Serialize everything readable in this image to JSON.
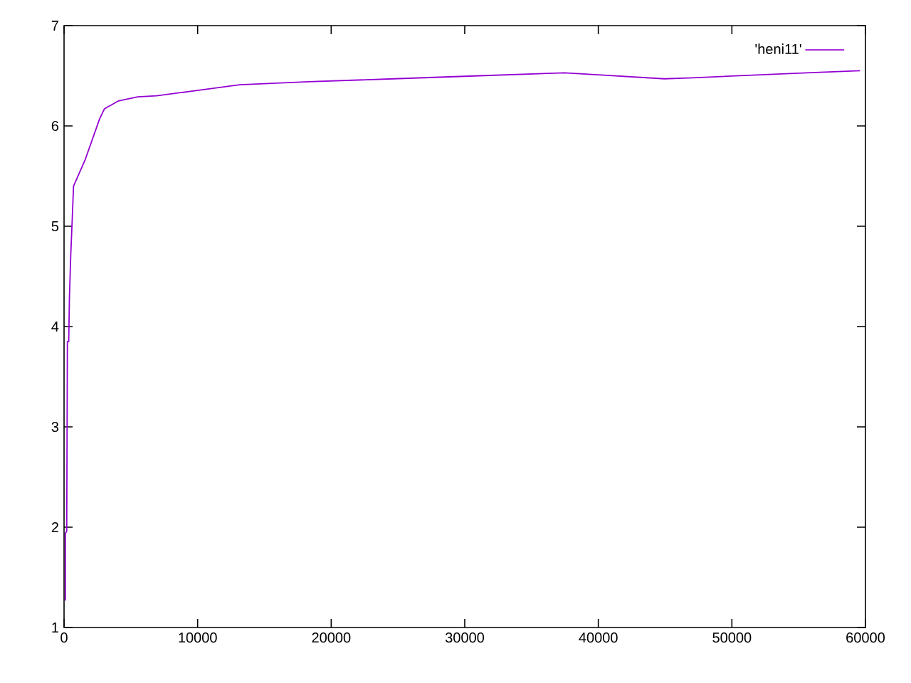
{
  "chart_data": {
    "type": "line",
    "series": [
      {
        "name": "'heni11'",
        "color": "#9400d3",
        "x": [
          100,
          100,
          200,
          250,
          350,
          400,
          500,
          600,
          710,
          1600,
          2660,
          3020,
          4080,
          5510,
          6930,
          9770,
          13150,
          18300,
          24690,
          31090,
          37480,
          39960,
          44940,
          47070,
          55600,
          59600
        ],
        "values": [
          1.27,
          1.94,
          1.96,
          3.85,
          3.85,
          4.28,
          4.71,
          5.03,
          5.4,
          5.67,
          6.07,
          6.17,
          6.25,
          6.29,
          6.3,
          6.35,
          6.41,
          6.44,
          6.47,
          6.5,
          6.53,
          6.51,
          6.47,
          6.48,
          6.53,
          6.55
        ]
      }
    ],
    "xlim": [
      0,
      60000
    ],
    "ylim": [
      1,
      7
    ],
    "xticks": [
      0,
      10000,
      20000,
      30000,
      40000,
      50000,
      60000
    ],
    "yticks": [
      1,
      2,
      3,
      4,
      5,
      6,
      7
    ],
    "legend": "top right",
    "marker": "none",
    "line_style": "solid",
    "grid": false
  }
}
